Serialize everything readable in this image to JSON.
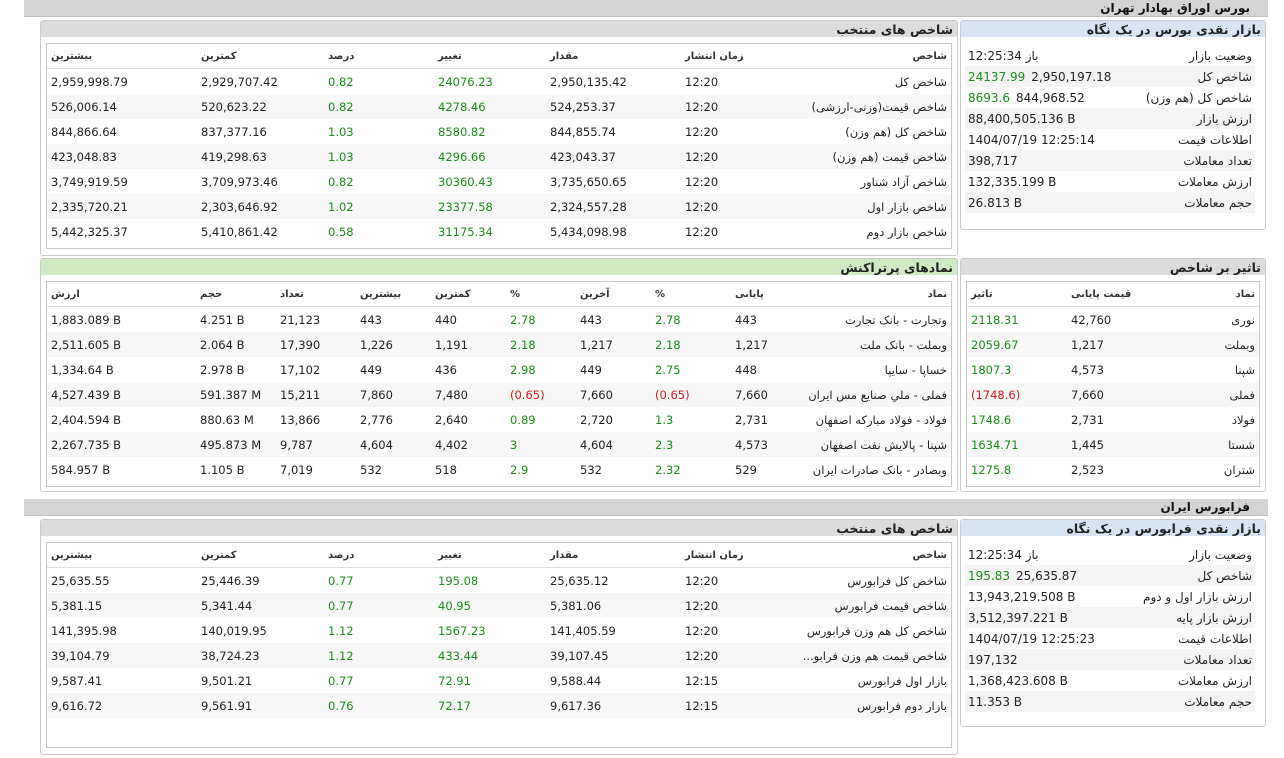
{
  "tse": {
    "section_title": "بورس اوراق بهادار تهران",
    "market_glance": {
      "title": "بازار نقدی بورس در یک نگاه",
      "rows": [
        {
          "label": "وضعیت بازار",
          "value": "باز 12:25:34",
          "change": ""
        },
        {
          "label": "شاخص کل",
          "value": "2,950,197.18",
          "change": "24137.99"
        },
        {
          "label": "شاخص کل (هم وزن)",
          "value": "844,968.52",
          "change": "8693.6"
        },
        {
          "label": "ارزش بازار",
          "value": "88,400,505.136 B",
          "change": ""
        },
        {
          "label": "اطلاعات قیمت",
          "value": "1404/07/19 12:25:14",
          "change": ""
        },
        {
          "label": "تعداد معاملات",
          "value": "398,717",
          "change": ""
        },
        {
          "label": "ارزش معاملات",
          "value": "132,335.199 B",
          "change": ""
        },
        {
          "label": "حجم معاملات",
          "value": "26.813 B",
          "change": ""
        }
      ]
    },
    "selected_indices": {
      "title": "شاخص های منتخب",
      "headers": [
        "شاخص",
        "زمان انتشار",
        "مقدار",
        "تغییر",
        "درصد",
        "کمترین",
        "بیشترین"
      ],
      "rows": [
        {
          "name": "شاخص کل",
          "time": "12:20",
          "value": "2,950,135.42",
          "change": "24076.23",
          "percent": "0.82",
          "min": "2,929,707.42",
          "max": "2,959,998.79"
        },
        {
          "name": "شاخص قیمت(وزنی-ارزشی)",
          "time": "12:20",
          "value": "524,253.37",
          "change": "4278.46",
          "percent": "0.82",
          "min": "520,623.22",
          "max": "526,006.14"
        },
        {
          "name": "شاخص کل (هم وزن)",
          "time": "12:20",
          "value": "844,855.74",
          "change": "8580.82",
          "percent": "1.03",
          "min": "837,377.16",
          "max": "844,866.64"
        },
        {
          "name": "شاخص قیمت (هم وزن)",
          "time": "12:20",
          "value": "423,043.37",
          "change": "4296.66",
          "percent": "1.03",
          "min": "419,298.63",
          "max": "423,048.83"
        },
        {
          "name": "شاخص آزاد شناور",
          "time": "12:20",
          "value": "3,735,650.65",
          "change": "30360.43",
          "percent": "0.82",
          "min": "3,709,973.46",
          "max": "3,749,919.59"
        },
        {
          "name": "شاخص بازار اول",
          "time": "12:20",
          "value": "2,324,557.28",
          "change": "23377.58",
          "percent": "1.02",
          "min": "2,303,646.92",
          "max": "2,335,720.21"
        },
        {
          "name": "شاخص بازار دوم",
          "time": "12:20",
          "value": "5,434,098.98",
          "change": "31175.34",
          "percent": "0.58",
          "min": "5,410,861.42",
          "max": "5,442,325.37"
        }
      ]
    },
    "index_impact": {
      "title": "تاثیر بر شاخص",
      "headers": [
        "نماد",
        "قیمت پایانی",
        "تاثیر"
      ],
      "rows": [
        {
          "symbol": "نوری",
          "price": "42,760",
          "impact": "2118.31",
          "neg": false
        },
        {
          "symbol": "وبملت",
          "price": "1,217",
          "impact": "2059.67",
          "neg": false
        },
        {
          "symbol": "شپنا",
          "price": "4,573",
          "impact": "1807.3",
          "neg": false
        },
        {
          "symbol": "فملی",
          "price": "7,660",
          "impact": "(1748.6)",
          "neg": true
        },
        {
          "symbol": "فولاد",
          "price": "2,731",
          "impact": "1748.6",
          "neg": false
        },
        {
          "symbol": "شستا",
          "price": "1,445",
          "impact": "1634.71",
          "neg": false
        },
        {
          "symbol": "شتران",
          "price": "2,523",
          "impact": "1275.8",
          "neg": false
        }
      ]
    },
    "most_traded": {
      "title": "نمادهای پرتراکنش",
      "headers": [
        "نماد",
        "پایانی",
        "%",
        "آخرین",
        "%",
        "کمترین",
        "بیشترین",
        "تعداد",
        "حجم",
        "ارزش"
      ],
      "rows": [
        {
          "name": "وتجارت - بانک تجارت",
          "close": "443",
          "close_pct": "2.78",
          "last": "443",
          "last_pct": "2.78",
          "min": "440",
          "max": "443",
          "count": "21,123",
          "volume": "4.251 B",
          "value": "1,883.089 B",
          "neg": false
        },
        {
          "name": "وبملت - بانک ملت",
          "close": "1,217",
          "close_pct": "2.18",
          "last": "1,217",
          "last_pct": "2.18",
          "min": "1,191",
          "max": "1,226",
          "count": "17,390",
          "volume": "2.064 B",
          "value": "2,511.605 B",
          "neg": false
        },
        {
          "name": "خساپا - سایپا",
          "close": "448",
          "close_pct": "2.75",
          "last": "449",
          "last_pct": "2.98",
          "min": "436",
          "max": "449",
          "count": "17,102",
          "volume": "2.978 B",
          "value": "1,334.64 B",
          "neg": false
        },
        {
          "name": "فملی - ملي صنايع مس ايران",
          "close": "7,660",
          "close_pct": "(0.65)",
          "last": "7,660",
          "last_pct": "(0.65)",
          "min": "7,480",
          "max": "7,860",
          "count": "15,211",
          "volume": "591.387 M",
          "value": "4,527.439 B",
          "neg": true
        },
        {
          "name": "فولاد - فولاد مباركه اصفهان",
          "close": "2,731",
          "close_pct": "1.3",
          "last": "2,720",
          "last_pct": "0.89",
          "min": "2,640",
          "max": "2,776",
          "count": "13,866",
          "volume": "880.63 M",
          "value": "2,404.594 B",
          "neg": false
        },
        {
          "name": "شپنا - پالايش نفت اصفهان",
          "close": "4,573",
          "close_pct": "2.3",
          "last": "4,604",
          "last_pct": "3",
          "min": "4,402",
          "max": "4,604",
          "count": "9,787",
          "volume": "495.873 M",
          "value": "2,267.735 B",
          "neg": false
        },
        {
          "name": "وبصادر - بانک صادرات ايران",
          "close": "529",
          "close_pct": "2.32",
          "last": "532",
          "last_pct": "2.9",
          "min": "518",
          "max": "532",
          "count": "7,019",
          "volume": "1.105 B",
          "value": "584.957 B",
          "neg": false
        }
      ]
    }
  },
  "ifb": {
    "section_title": "فرابورس ایران",
    "market_glance": {
      "title": "بازار نقدی فرابورس در یک نگاه",
      "rows": [
        {
          "label": "وضعیت بازار",
          "value": "باز 12:25:34",
          "change": ""
        },
        {
          "label": "شاخص کل",
          "value": "25,635.87",
          "change": "195.83"
        },
        {
          "label": "ارزش بازار اول و دوم",
          "value": "13,943,219.508 B",
          "change": ""
        },
        {
          "label": "ارزش بازار پایه",
          "value": "3,512,397.221 B",
          "change": ""
        },
        {
          "label": "اطلاعات قیمت",
          "value": "1404/07/19 12:25:23",
          "change": ""
        },
        {
          "label": "تعداد معاملات",
          "value": "197,132",
          "change": ""
        },
        {
          "label": "ارزش معاملات",
          "value": "1,368,423.608 B",
          "change": ""
        },
        {
          "label": "حجم معاملات",
          "value": "11.353 B",
          "change": ""
        }
      ]
    },
    "selected_indices": {
      "title": "شاخص های منتخب",
      "headers": [
        "شاخص",
        "زمان انتشار",
        "مقدار",
        "تغییر",
        "درصد",
        "کمترین",
        "بیشترین"
      ],
      "rows": [
        {
          "name": "شاخص كل فرابورس",
          "time": "12:20",
          "value": "25,635.12",
          "change": "195.08",
          "percent": "0.77",
          "min": "25,446.39",
          "max": "25,635.55"
        },
        {
          "name": "شاخص قيمت فرابورس",
          "time": "12:20",
          "value": "5,381.06",
          "change": "40.95",
          "percent": "0.77",
          "min": "5,341.44",
          "max": "5,381.15"
        },
        {
          "name": "شاخص كل هم وزن فرابورس",
          "time": "12:20",
          "value": "141,405.59",
          "change": "1567.23",
          "percent": "1.12",
          "min": "140,019.95",
          "max": "141,395.98"
        },
        {
          "name": "شاخص قيمت هم وزن فرابو...",
          "time": "12:20",
          "value": "39,107.45",
          "change": "433.44",
          "percent": "1.12",
          "min": "38,724.23",
          "max": "39,104.79"
        },
        {
          "name": "بازار اول فرابورس",
          "time": "12:15",
          "value": "9,588.44",
          "change": "72.91",
          "percent": "0.77",
          "min": "9,501.21",
          "max": "9,587.41"
        },
        {
          "name": "بازار دوم فرابورس",
          "time": "12:15",
          "value": "9,617.36",
          "change": "72.17",
          "percent": "0.76",
          "min": "9,561.91",
          "max": "9,616.72"
        }
      ]
    }
  },
  "colors": {
    "positive": "#1c8a1c",
    "negative": "#d01818",
    "green_header": "#cfe9c2",
    "blue_header": "#d8e4f4"
  }
}
